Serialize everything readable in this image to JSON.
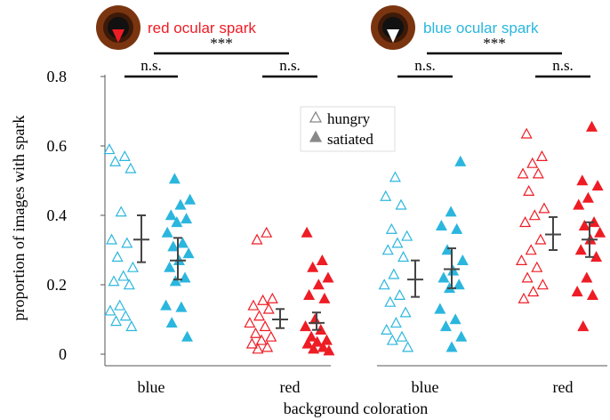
{
  "colors": {
    "blue": "#2bb6de",
    "red": "#ee1c24",
    "axis": "#555555",
    "errorbar": "#444444",
    "legend_marker": "#888888",
    "eye_outer": "#7a3510",
    "eye_ring": "#3d1a08",
    "pupil": "#111111"
  },
  "panels": [
    {
      "title": "red ocular spark",
      "title_color": "#ee1c24",
      "spark_color": "#ee1c24",
      "sig_outer": "***",
      "sig_left": "n.s.",
      "sig_right": "n.s."
    },
    {
      "title": "blue ocular spark",
      "title_color": "#2bb6de",
      "spark_color": "#ffffff",
      "sig_outer": "***",
      "sig_left": "n.s.",
      "sig_right": "n.s."
    }
  ],
  "chart_data": {
    "type": "scatter",
    "ylabel": "proportion of images with spark",
    "xlabel": "background coloration",
    "ylim": [
      0,
      0.8
    ],
    "yticks": [
      "0",
      "0.2",
      "0.4",
      "0.6",
      "0.8"
    ],
    "categories": [
      "blue",
      "red",
      "blue",
      "red"
    ],
    "legend": {
      "position": "top-center",
      "items": [
        {
          "label": "hungry",
          "marker": "open-triangle"
        },
        {
          "label": "satiated",
          "marker": "filled-triangle"
        }
      ]
    },
    "groups": [
      {
        "panel": 0,
        "category": 0,
        "state": "hungry",
        "color": "blue",
        "filled": false,
        "mean": 0.33,
        "err": [
          0.265,
          0.4
        ],
        "values": [
          0.59,
          0.57,
          0.555,
          0.535,
          0.41,
          0.33,
          0.32,
          0.28,
          0.25,
          0.225,
          0.21,
          0.2,
          0.14,
          0.125,
          0.11,
          0.095,
          0.08
        ]
      },
      {
        "panel": 0,
        "category": 0,
        "state": "satiated",
        "color": "blue",
        "filled": true,
        "mean": 0.27,
        "err": [
          0.215,
          0.335
        ],
        "values": [
          0.505,
          0.445,
          0.43,
          0.4,
          0.39,
          0.38,
          0.35,
          0.32,
          0.31,
          0.29,
          0.27,
          0.25,
          0.22,
          0.21,
          0.14,
          0.135,
          0.09,
          0.05
        ]
      },
      {
        "panel": 0,
        "category": 1,
        "state": "hungry",
        "color": "red",
        "filled": false,
        "mean": 0.1,
        "err": [
          0.075,
          0.13
        ],
        "values": [
          0.35,
          0.33,
          0.16,
          0.155,
          0.14,
          0.13,
          0.11,
          0.09,
          0.08,
          0.06,
          0.05,
          0.04,
          0.03,
          0.02,
          0.015
        ]
      },
      {
        "panel": 0,
        "category": 1,
        "state": "satiated",
        "color": "red",
        "filled": true,
        "mean": 0.09,
        "err": [
          0.07,
          0.12
        ],
        "values": [
          0.35,
          0.27,
          0.25,
          0.22,
          0.2,
          0.17,
          0.16,
          0.1,
          0.08,
          0.07,
          0.05,
          0.04,
          0.035,
          0.03,
          0.02,
          0.015,
          0.01
        ]
      },
      {
        "panel": 1,
        "category": 2,
        "state": "hungry",
        "color": "blue",
        "filled": false,
        "mean": 0.215,
        "err": [
          0.165,
          0.27
        ],
        "values": [
          0.51,
          0.455,
          0.43,
          0.36,
          0.34,
          0.32,
          0.3,
          0.28,
          0.23,
          0.2,
          0.17,
          0.15,
          0.12,
          0.09,
          0.07,
          0.05,
          0.04,
          0.02
        ]
      },
      {
        "panel": 1,
        "category": 2,
        "state": "satiated",
        "color": "blue",
        "filled": true,
        "mean": 0.245,
        "err": [
          0.19,
          0.305
        ],
        "values": [
          0.555,
          0.41,
          0.37,
          0.36,
          0.3,
          0.27,
          0.24,
          0.22,
          0.2,
          0.19,
          0.13,
          0.1,
          0.08,
          0.05,
          0.02
        ]
      },
      {
        "panel": 1,
        "category": 3,
        "state": "hungry",
        "color": "red",
        "filled": false,
        "mean": 0.345,
        "err": [
          0.3,
          0.395
        ],
        "values": [
          0.635,
          0.57,
          0.55,
          0.52,
          0.52,
          0.47,
          0.42,
          0.4,
          0.38,
          0.33,
          0.3,
          0.27,
          0.25,
          0.22,
          0.2,
          0.18,
          0.16
        ]
      },
      {
        "panel": 1,
        "category": 3,
        "state": "satiated",
        "color": "red",
        "filled": true,
        "mean": 0.33,
        "err": [
          0.28,
          0.38
        ],
        "values": [
          0.655,
          0.5,
          0.485,
          0.45,
          0.43,
          0.38,
          0.37,
          0.35,
          0.33,
          0.3,
          0.28,
          0.22,
          0.18,
          0.17,
          0.08
        ]
      }
    ]
  }
}
